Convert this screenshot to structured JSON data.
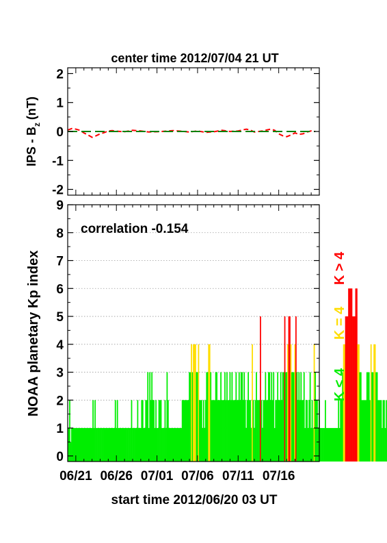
{
  "chart_data": [
    {
      "type": "line",
      "title": "center time 2012/07/04 21 UT",
      "ylabel": "IPS - B",
      "ylabel_sub": "z",
      "ylabel_unit": "(nT)",
      "ylim": [
        -2.2,
        2.2
      ],
      "yticks": [
        "2",
        "1",
        "0",
        "-1",
        "-2"
      ],
      "xlim_days": [
        0,
        31
      ],
      "series": [
        {
          "color": "#ff0000",
          "style": "dashed",
          "x": [
            0,
            0.5,
            1,
            1.5,
            2,
            2.5,
            3,
            3.5,
            4,
            4.5,
            5,
            5.5,
            6,
            7,
            8,
            9,
            10,
            11,
            12,
            13,
            14,
            15,
            16,
            17,
            18,
            19,
            20,
            21,
            22,
            22.5,
            23,
            24,
            25,
            25.5,
            26,
            26.5,
            27,
            27.5,
            28,
            28.5,
            29,
            29.5,
            30,
            30.5
          ],
          "y": [
            0.05,
            0.1,
            0.08,
            0.04,
            -0.05,
            -0.12,
            -0.2,
            -0.15,
            -0.08,
            -0.04,
            0.02,
            0.03,
            0.01,
            -0.01,
            0.04,
            0.02,
            -0.02,
            -0.01,
            0.01,
            0.03,
            0.01,
            -0.02,
            0.02,
            -0.03,
            -0.01,
            0.04,
            0.0,
            0.02,
            0.08,
            0.05,
            -0.02,
            0.02,
            0.08,
            0.04,
            -0.08,
            -0.15,
            -0.18,
            -0.12,
            -0.05,
            -0.1,
            -0.08,
            -0.02,
            0.02,
            0.0
          ]
        },
        {
          "color": "#008000",
          "style": "dashed",
          "x": [
            0,
            30.5
          ],
          "y": [
            0,
            0
          ]
        }
      ]
    },
    {
      "type": "bar",
      "ylabel": "NOAA planetary Kp index",
      "annotation": "correlation -0.154",
      "ylim": [
        -0.2,
        9
      ],
      "yticks": [
        "9",
        "8",
        "7",
        "6",
        "5",
        "4",
        "3",
        "2",
        "1",
        "0"
      ],
      "grid": true,
      "xlim_days": [
        0,
        31
      ],
      "bin_days": 0.125,
      "values": [
        1,
        2,
        0.5,
        1,
        1,
        1,
        1,
        1,
        1,
        1,
        1,
        1,
        1,
        1,
        1,
        1,
        1,
        1,
        1,
        1,
        1,
        1,
        1,
        1,
        2,
        1,
        2,
        1,
        1,
        1,
        1,
        1,
        1,
        1,
        1,
        1,
        1,
        1,
        1,
        1,
        1,
        1,
        1,
        1,
        1,
        1,
        2,
        1,
        2,
        1,
        1,
        1,
        1,
        1,
        1,
        1,
        1,
        1,
        1,
        1,
        1,
        1,
        2,
        1,
        1,
        1,
        1,
        1,
        2,
        1,
        1,
        1,
        2,
        2,
        1,
        1,
        2,
        2,
        3,
        1,
        3,
        2,
        3,
        2,
        2,
        1,
        2,
        1,
        1,
        2,
        2,
        2,
        1,
        1,
        1,
        2,
        1,
        3,
        2,
        1,
        1,
        1,
        1,
        1,
        1,
        1,
        1,
        1,
        1,
        1,
        1,
        1,
        2,
        2,
        2,
        2,
        2,
        2,
        2,
        3,
        3,
        4,
        3,
        4,
        4,
        4,
        3,
        3,
        4,
        2,
        2,
        2,
        1,
        2,
        1,
        2,
        3,
        3,
        4,
        4,
        3,
        2,
        2,
        2,
        2,
        3,
        3,
        2,
        2,
        2,
        3,
        2,
        2,
        2,
        3,
        2,
        3,
        2,
        2,
        3,
        2,
        3,
        2,
        2,
        2,
        3,
        2,
        2,
        3,
        2,
        3,
        3,
        2,
        3,
        2,
        1,
        2,
        3,
        2,
        2,
        1,
        4,
        2,
        1,
        2,
        3,
        2,
        2,
        2,
        5,
        2,
        1,
        2,
        2,
        3,
        2,
        2,
        3,
        3,
        2,
        3,
        2,
        3,
        1,
        2,
        2,
        3,
        2,
        2,
        3,
        2,
        3,
        3,
        5,
        3,
        3,
        4,
        5,
        5,
        4,
        3,
        3,
        3,
        4,
        5,
        3,
        2,
        3,
        2,
        3,
        2,
        2,
        3,
        1,
        2,
        2,
        1,
        2,
        3,
        1,
        2,
        1,
        4,
        3,
        2,
        2,
        1,
        2,
        1,
        1,
        1,
        1,
        1,
        2,
        1,
        1,
        1,
        1,
        1,
        1,
        1,
        1,
        1,
        1,
        1,
        1,
        2,
        1,
        2,
        2,
        3,
        4,
        4,
        5,
        5,
        5,
        6,
        6,
        6,
        6,
        5,
        5,
        5,
        6,
        6,
        4,
        4,
        3,
        3,
        2,
        2,
        2,
        2,
        2,
        3,
        3,
        3,
        2,
        4,
        3,
        3,
        4,
        4,
        3,
        3,
        2,
        2,
        2,
        2,
        1,
        2,
        2,
        1,
        2,
        1,
        1,
        2,
        2,
        2,
        2,
        1,
        1,
        1,
        1,
        1,
        1,
        1,
        1,
        1,
        1,
        1,
        1,
        1,
        1,
        1,
        1,
        1,
        1,
        1,
        1
      ],
      "colors": {
        "low": "#00ee00",
        "mid": "#ffdd00",
        "high": "#ff0000"
      },
      "legend": [
        {
          "label": "K > 4",
          "color": "#ff0000"
        },
        {
          "label": "K = 4",
          "color": "#ffdd00"
        },
        {
          "label": "K < 4",
          "color": "#00ee00"
        }
      ],
      "xticks": [
        "06/21",
        "06/26",
        "07/01",
        "07/06",
        "07/11",
        "07/16"
      ],
      "xtick_days": [
        1,
        6,
        11,
        16,
        21,
        26
      ],
      "xlabel": "start time 2012/06/20 03 UT"
    }
  ]
}
